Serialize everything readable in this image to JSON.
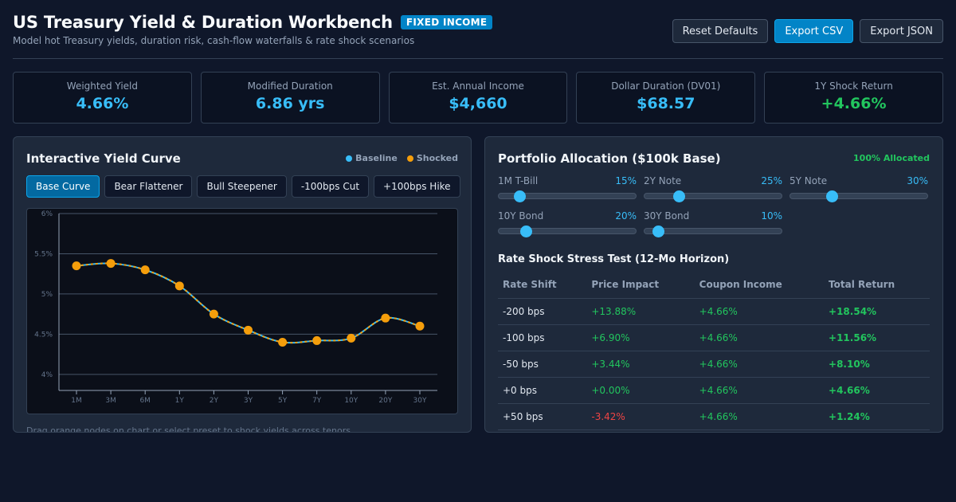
{
  "header": {
    "title": "US Treasury Yield & Duration Workbench",
    "badge": "FIXED INCOME",
    "subtitle": "Model hot Treasury yields, duration risk, cash-flow waterfalls & rate shock scenarios",
    "actions": [
      "Reset Defaults",
      "Export CSV",
      "Export JSON"
    ]
  },
  "kpis": [
    {
      "label": "Weighted Yield",
      "value": "4.66%"
    },
    {
      "label": "Modified Duration",
      "value": "6.86 yrs"
    },
    {
      "label": "Est. Annual Income",
      "value": "$4,660"
    },
    {
      "label": "Dollar Duration (DV01)",
      "value": "$68.57"
    },
    {
      "label": "1Y Shock Return",
      "value": "+4.66%"
    }
  ],
  "yield_panel": {
    "title": "Interactive Yield Curve",
    "legend": [
      "Baseline",
      "Shocked"
    ],
    "presets": [
      "Base Curve",
      "Bear Flattener",
      "Bull Steepener",
      "-100bps Cut",
      "+100bps Hike"
    ],
    "hint": "Drag orange nodes on chart or select preset to shock yields across tenors."
  },
  "chart_data": {
    "type": "line",
    "x": [
      "1M",
      "3M",
      "6M",
      "1Y",
      "2Y",
      "3Y",
      "5Y",
      "7Y",
      "10Y",
      "20Y",
      "30Y"
    ],
    "series": [
      {
        "name": "Baseline",
        "values": [
          5.35,
          5.38,
          5.3,
          5.1,
          4.75,
          4.55,
          4.4,
          4.42,
          4.45,
          4.7,
          4.6
        ]
      },
      {
        "name": "Shocked",
        "values": [
          5.35,
          5.38,
          5.3,
          5.1,
          4.75,
          4.55,
          4.4,
          4.42,
          4.45,
          4.7,
          4.6
        ]
      }
    ],
    "yticks": [
      "4%",
      "4.5%",
      "5%",
      "5.5%",
      "6%"
    ],
    "ylim": [
      3.8,
      6.0
    ],
    "grid": true,
    "legend": "top-right"
  },
  "allocation": {
    "title": "Portfolio Allocation ($100k Base)",
    "status": "100% Allocated",
    "items": [
      {
        "label": "1M T-Bill",
        "pct": "15%",
        "value": 15
      },
      {
        "label": "2Y Note",
        "pct": "25%",
        "value": 25
      },
      {
        "label": "5Y Note",
        "pct": "30%",
        "value": 30
      },
      {
        "label": "10Y Bond",
        "pct": "20%",
        "value": 20
      },
      {
        "label": "30Y Bond",
        "pct": "10%",
        "value": 10
      }
    ]
  },
  "stress": {
    "title": "Rate Shock Stress Test (12-Mo Horizon)",
    "columns": [
      "Rate Shift",
      "Price Impact",
      "Coupon Income",
      "Total Return"
    ],
    "rows": [
      [
        "-200 bps",
        "+13.88%",
        "+4.66%",
        "+18.54%"
      ],
      [
        "-100 bps",
        "+6.90%",
        "+4.66%",
        "+11.56%"
      ],
      [
        "-50 bps",
        "+3.44%",
        "+4.66%",
        "+8.10%"
      ],
      [
        "+0 bps",
        "+0.00%",
        "+4.66%",
        "+4.66%"
      ],
      [
        "+50 bps",
        "-3.42%",
        "+4.66%",
        "+1.24%"
      ]
    ]
  },
  "colors": {
    "accent": "#38bdf8",
    "shocked": "#f59e0b",
    "positive": "#22c55e",
    "negative": "#ef4444",
    "background": "#0f172a"
  }
}
